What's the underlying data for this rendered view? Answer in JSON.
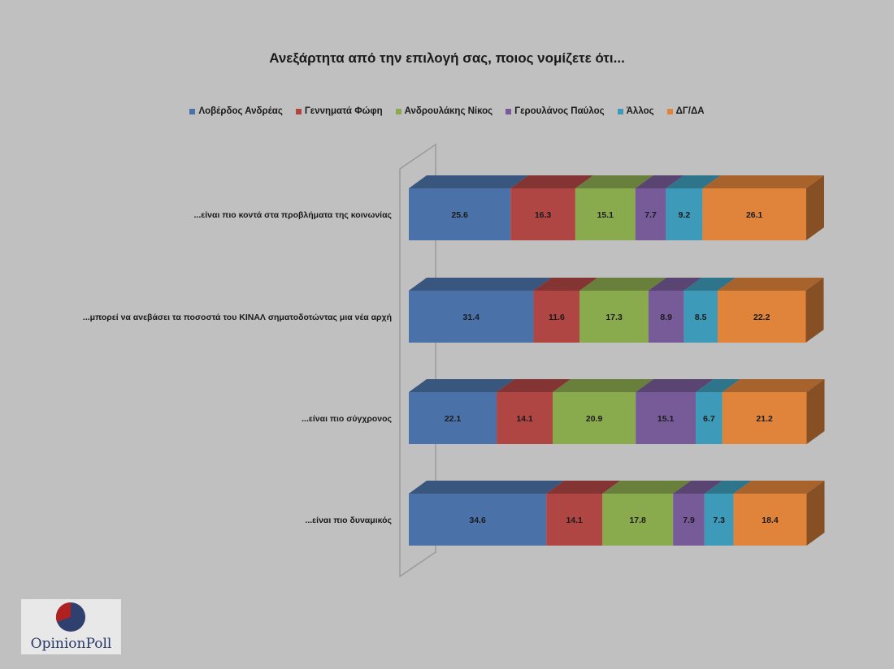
{
  "chart_data": {
    "type": "bar",
    "title": "Ανεξάρτητα από την επιλογή σας,  ποιος νομίζετε ότι...",
    "categories": [
      "...είναι πιο κοντά στα προβλήματα της κοινωνίας",
      "...μπορεί να ανεβάσει τα ποσοστά του ΚΙΝΑΛ σηματοδοτώντας μια νέα αρχή",
      "...είναι πιο σύγχρονος",
      "...είναι πιο δυναμικός"
    ],
    "series": [
      {
        "name": "Λοβέρδος Ανδρέας",
        "color": "#4a72a8",
        "values": [
          25.6,
          31.4,
          22.1,
          34.6
        ]
      },
      {
        "name": "Γεννηματά Φώφη",
        "color": "#b04644",
        "values": [
          16.3,
          11.6,
          14.1,
          14.1
        ]
      },
      {
        "name": "Ανδρουλάκης Νίκος",
        "color": "#8aaa4e",
        "values": [
          15.1,
          17.3,
          20.9,
          17.8
        ]
      },
      {
        "name": "Γερουλάνος Παύλος",
        "color": "#775a98",
        "values": [
          7.7,
          8.9,
          15.1,
          7.9
        ]
      },
      {
        "name": "Άλλος",
        "color": "#3d9ab8",
        "values": [
          9.2,
          8.5,
          6.7,
          7.3
        ]
      },
      {
        "name": "ΔΓ/ΔΑ",
        "color": "#e0843c",
        "values": [
          26.1,
          22.2,
          21.2,
          18.4
        ]
      }
    ],
    "stacked": true,
    "orientation": "horizontal",
    "style": "3d",
    "legend_position": "top",
    "grid": false
  },
  "logo": {
    "text": "OpinionPoll"
  }
}
